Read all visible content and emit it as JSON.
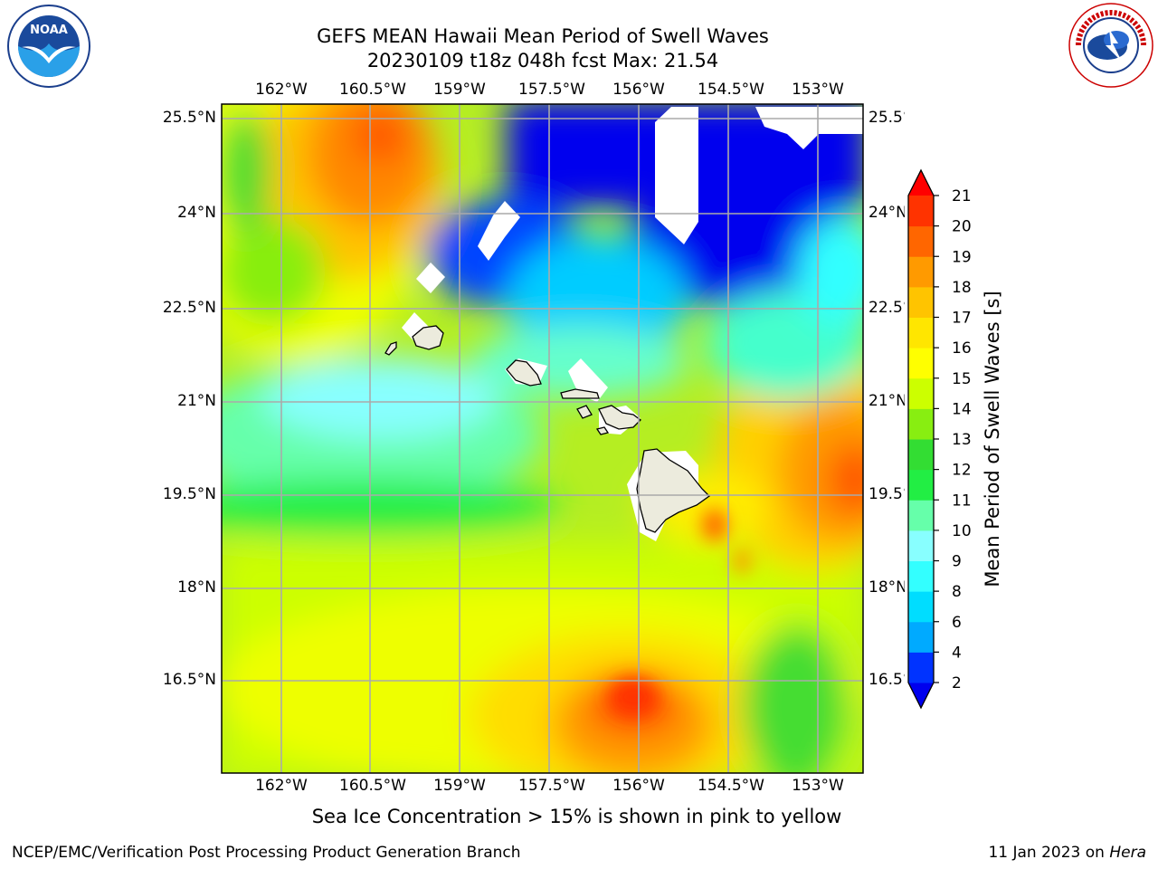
{
  "title_line1": "GEFS MEAN Hawaii Mean Period of Swell Waves",
  "title_line2": "20230109 t18z 048h fcst   Max: 21.54",
  "lon_labels": [
    "162°W",
    "160.5°W",
    "159°W",
    "157.5°W",
    "156°W",
    "154.5°W",
    "153°W"
  ],
  "lat_labels": [
    "25.5°N",
    "24°N",
    "22.5°N",
    "21°N",
    "19.5°N",
    "18°N",
    "16.5°N"
  ],
  "colorbar": {
    "label": "Mean Period of Swell Waves [s]",
    "ticks": [
      "2",
      "4",
      "6",
      "8",
      "9",
      "10",
      "11",
      "12",
      "13",
      "14",
      "15",
      "16",
      "17",
      "18",
      "19",
      "20",
      "21"
    ],
    "colors": [
      "#0033ff",
      "#00aaff",
      "#00ddff",
      "#33ffff",
      "#88ffff",
      "#66ffaa",
      "#22ee44",
      "#33dd33",
      "#88ee11",
      "#ccff00",
      "#ffff00",
      "#ffe600",
      "#ffc400",
      "#ff9a00",
      "#ff6600",
      "#ff3300"
    ],
    "under_color": "#0000ee",
    "over_color": "#ff0000"
  },
  "caption": "Sea Ice Concentration > 15% is shown in pink to yellow",
  "footer_left": "NCEP/EMC/Verification Post Processing Product Generation Branch",
  "footer_right_date": "11 Jan 2023 on",
  "footer_right_host": "Hera",
  "logos": {
    "noaa_text": "NOAA",
    "nws_text": "NATIONAL WEATHER SERVICE"
  }
}
